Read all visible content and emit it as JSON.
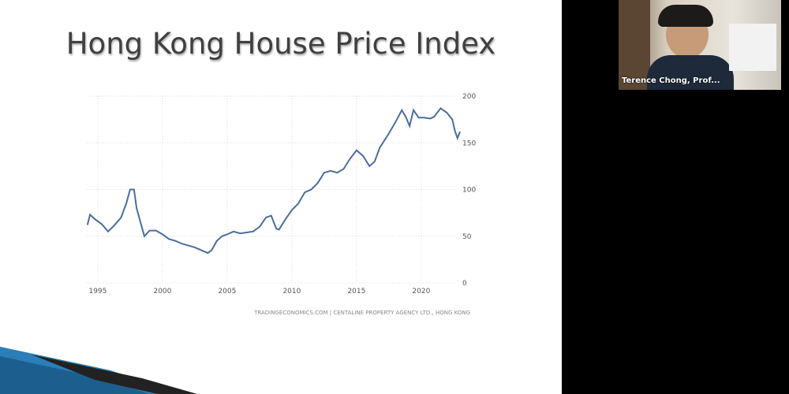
{
  "slide": {
    "title": "Hong Kong House Price Index"
  },
  "participant": {
    "name": "Terence Chong, Prof..."
  },
  "chart_data": {
    "type": "line",
    "source": "TRADINGECONOMICS.COM  |  CENTALINE PROPERTY AGENCY LTD., HONG KONG",
    "x": [
      1994.2,
      1994.4,
      1994.8,
      1995.3,
      1995.8,
      1996.3,
      1996.8,
      1997.2,
      1997.5,
      1997.8,
      1998.0,
      1998.3,
      1998.6,
      1999.0,
      1999.5,
      2000.0,
      2000.5,
      2001.0,
      2001.5,
      2002.0,
      2002.5,
      2003.0,
      2003.5,
      2003.8,
      2004.2,
      2004.6,
      2005.0,
      2005.5,
      2006.0,
      2006.5,
      2007.0,
      2007.5,
      2008.0,
      2008.4,
      2008.8,
      2009.0,
      2009.5,
      2010.0,
      2010.5,
      2011.0,
      2011.5,
      2012.0,
      2012.5,
      2013.0,
      2013.5,
      2014.0,
      2014.5,
      2015.0,
      2015.5,
      2016.0,
      2016.4,
      2016.8,
      2017.5,
      2018.0,
      2018.5,
      2018.8,
      2019.1,
      2019.4,
      2019.8,
      2020.2,
      2020.7,
      2021.0,
      2021.5,
      2022.0,
      2022.4,
      2022.6,
      2022.8,
      2023.0
    ],
    "series": [
      {
        "color": "#4a6e9b",
        "values": [
          62,
          73,
          68,
          63,
          55,
          62,
          70,
          85,
          100,
          100,
          80,
          65,
          50,
          56,
          56,
          52,
          47,
          45,
          42,
          40,
          38,
          35,
          32,
          35,
          45,
          50,
          52,
          55,
          53,
          54,
          55,
          60,
          70,
          72,
          58,
          57,
          68,
          78,
          85,
          97,
          100,
          107,
          118,
          120,
          118,
          122,
          133,
          142,
          136,
          125,
          130,
          145,
          160,
          172,
          185,
          178,
          168,
          185,
          177,
          177,
          176,
          178,
          187,
          182,
          175,
          163,
          155,
          162
        ]
      }
    ],
    "xlim": [
      1994.15,
      2023.3
    ],
    "xticks": [
      1995,
      2000,
      2005,
      2010,
      2015,
      2020
    ],
    "ylim": [
      0,
      200
    ],
    "yticks": [
      0,
      50,
      100,
      150,
      200
    ],
    "grid": true
  }
}
